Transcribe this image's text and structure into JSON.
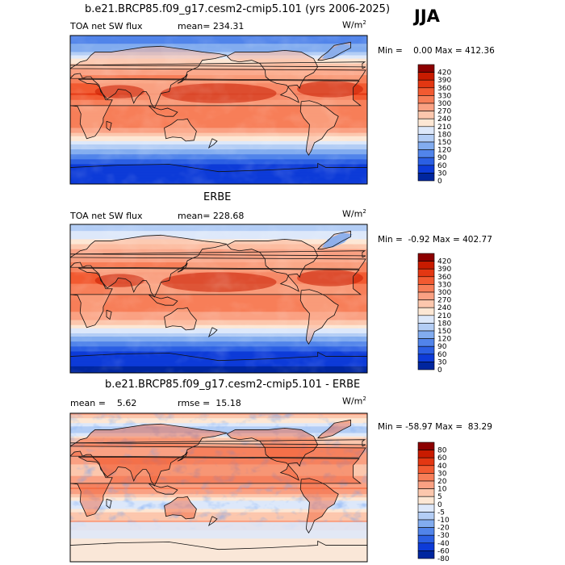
{
  "season": "JJA",
  "panels": [
    {
      "title": "b.e21.BRCP85.f09_g17.cesm2-cmip5.101 (yrs 2006-2025)",
      "variable": "TOA net SW flux",
      "mean": "mean= 234.31",
      "rmse": "",
      "unit": "W/m",
      "unit_sup": "2",
      "minmax": "Min =    0.00 Max = 412.36"
    },
    {
      "title": "ERBE",
      "variable": "TOA net SW flux",
      "mean": "mean= 228.68",
      "rmse": "",
      "unit": "W/m",
      "unit_sup": "2",
      "minmax": "Min =  -0.92 Max = 402.77"
    },
    {
      "title": "b.e21.BRCP85.f09_g17.cesm2-cmip5.101 - ERBE",
      "variable": "",
      "mean": "mean =    5.62",
      "rmse": "rmse =  15.18",
      "unit": "W/m",
      "unit_sup": "2",
      "minmax": "Min = -58.97 Max =  83.29"
    }
  ],
  "chart_data": [
    {
      "type": "heatmap",
      "title": "b.e21.BRCP85.f09_g17.cesm2-cmip5.101 (yrs 2006-2025)",
      "variable": "TOA net SW flux",
      "unit": "W/m2",
      "mean": 234.31,
      "min": 0.0,
      "max": 412.36,
      "colorbar_levels": [
        "420",
        "390",
        "360",
        "330",
        "300",
        "270",
        "240",
        "210",
        "180",
        "150",
        "120",
        "90",
        "60",
        "30",
        "0"
      ],
      "colorbar_colors": [
        "#8c0000",
        "#c81b00",
        "#e33712",
        "#f25a31",
        "#f77e58",
        "#faa183",
        "#fcc7ad",
        "#fde7d4",
        "#dde8fa",
        "#b3cdf5",
        "#82acef",
        "#5184ea",
        "#2b5fe3",
        "#0d3bd8",
        "#00269f"
      ],
      "map_profile": [
        [
          90,
          90
        ],
        [
          70,
          150
        ],
        [
          60,
          230
        ],
        [
          45,
          290
        ],
        [
          30,
          340
        ],
        [
          20,
          360
        ],
        [
          10,
          320
        ],
        [
          0,
          300
        ],
        [
          -10,
          320
        ],
        [
          -20,
          300
        ],
        [
          -30,
          250
        ],
        [
          -40,
          190
        ],
        [
          -50,
          130
        ],
        [
          -60,
          80
        ],
        [
          -70,
          45
        ],
        [
          -90,
          30
        ]
      ]
    },
    {
      "type": "heatmap",
      "title": "ERBE",
      "variable": "TOA net SW flux",
      "unit": "W/m2",
      "mean": 228.68,
      "min": -0.92,
      "max": 402.77,
      "colorbar_levels": [
        "420",
        "390",
        "360",
        "330",
        "300",
        "270",
        "240",
        "210",
        "180",
        "150",
        "120",
        "90",
        "60",
        "30",
        "0"
      ],
      "colorbar_colors": [
        "#8c0000",
        "#c81b00",
        "#e33712",
        "#f25a31",
        "#f77e58",
        "#faa183",
        "#fcc7ad",
        "#fde7d4",
        "#dde8fa",
        "#b3cdf5",
        "#82acef",
        "#5184ea",
        "#2b5fe3",
        "#0d3bd8",
        "#00269f"
      ],
      "map_profile": [
        [
          90,
          160
        ],
        [
          70,
          220
        ],
        [
          60,
          270
        ],
        [
          45,
          300
        ],
        [
          30,
          340
        ],
        [
          20,
          330
        ],
        [
          10,
          320
        ],
        [
          0,
          300
        ],
        [
          -10,
          310
        ],
        [
          -20,
          290
        ],
        [
          -30,
          240
        ],
        [
          -40,
          180
        ],
        [
          -50,
          120
        ],
        [
          -60,
          70
        ],
        [
          -70,
          40
        ],
        [
          -90,
          20
        ]
      ]
    },
    {
      "type": "heatmap",
      "title": "b.e21.BRCP85.f09_g17.cesm2-cmip5.101 - ERBE",
      "unit": "W/m2",
      "mean": 5.62,
      "rmse": 15.18,
      "min": -58.97,
      "max": 83.29,
      "colorbar_levels": [
        "80",
        "60",
        "40",
        "30",
        "20",
        "10",
        "5",
        "0",
        "-5",
        "-10",
        "-20",
        "-30",
        "-40",
        "-60",
        "-80"
      ],
      "colorbar_colors": [
        "#8c0000",
        "#c81b00",
        "#e33712",
        "#f25a31",
        "#f77e58",
        "#faa183",
        "#fcc7ad",
        "#fde7d4",
        "#dde8fa",
        "#b3cdf5",
        "#82acef",
        "#5184ea",
        "#2b5fe3",
        "#0d3bd8",
        "#00269f"
      ],
      "map_profile": [
        [
          90,
          10
        ],
        [
          70,
          -10
        ],
        [
          60,
          5
        ],
        [
          45,
          15
        ],
        [
          30,
          10
        ],
        [
          20,
          5
        ],
        [
          10,
          15
        ],
        [
          0,
          20
        ],
        [
          -10,
          5
        ],
        [
          -20,
          -5
        ],
        [
          -30,
          5
        ],
        [
          -40,
          10
        ],
        [
          -50,
          5
        ],
        [
          -60,
          0
        ],
        [
          -70,
          -5
        ],
        [
          -90,
          0
        ]
      ]
    }
  ]
}
